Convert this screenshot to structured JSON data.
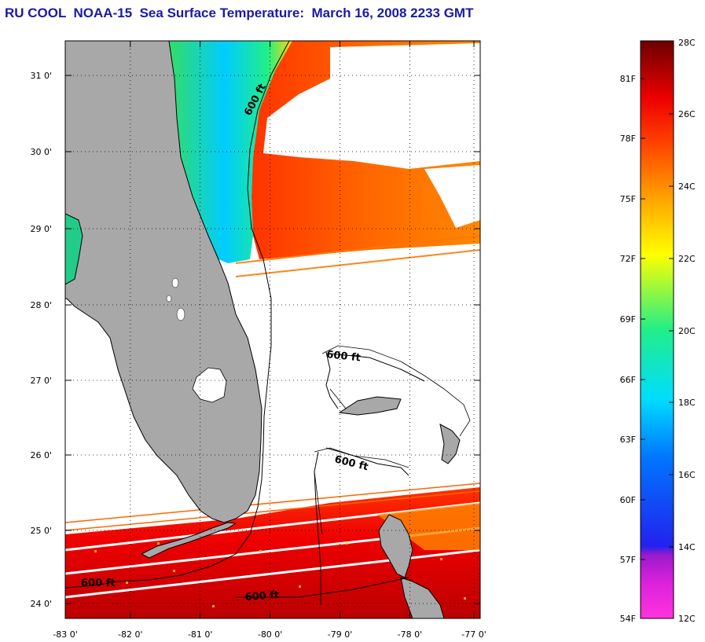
{
  "title": "RU COOL  NOAA-15  Sea Surface Temperature:  March 16, 2008 2233 GMT",
  "map": {
    "lon_labels": [
      "-83 0'",
      "-82 0'",
      "-81 0'",
      "-80 0'",
      "-79 0'",
      "-78 0'",
      "-77 0'"
    ],
    "lat_labels": [
      "31 0'",
      "30 0'",
      "29 0'",
      "28 0'",
      "27 0'",
      "26 0'",
      "25 0'",
      "24 0'"
    ],
    "contour_label": "600 ft",
    "contour_labels": [
      {
        "text": "600 ft",
        "lon": -80.15,
        "lat": 30.7,
        "rotate": -62
      },
      {
        "text": "600 ft",
        "lon": -78.8,
        "lat": 27.35,
        "rotate": 6
      },
      {
        "text": "600 ft",
        "lon": -78.35,
        "lat": 25.95,
        "rotate": 14
      },
      {
        "text": "600 ft",
        "lon": -82.7,
        "lat": 24.27,
        "rotate": 0
      },
      {
        "text": "600 ft",
        "lon": -80.5,
        "lat": 24.05,
        "rotate": -4
      }
    ],
    "colors": {
      "land": "#a8a8a8",
      "coast": "#000000",
      "missing": "#ffffff"
    }
  },
  "colorbar": {
    "fahrenheit_labels": [
      "81F",
      "78F",
      "75F",
      "72F",
      "69F",
      "66F",
      "63F",
      "60F",
      "57F",
      "54F"
    ],
    "celsius_labels": [
      "28C",
      "26C",
      "24C",
      "22C",
      "20C",
      "18C",
      "16C",
      "14C",
      "12C"
    ],
    "colors": [
      "#ff33dd",
      "#aa22cc",
      "#2222ff",
      "#00ccff",
      "#22ee88",
      "#ffff00",
      "#ff9900",
      "#ff1a00",
      "#6b0000"
    ]
  }
}
